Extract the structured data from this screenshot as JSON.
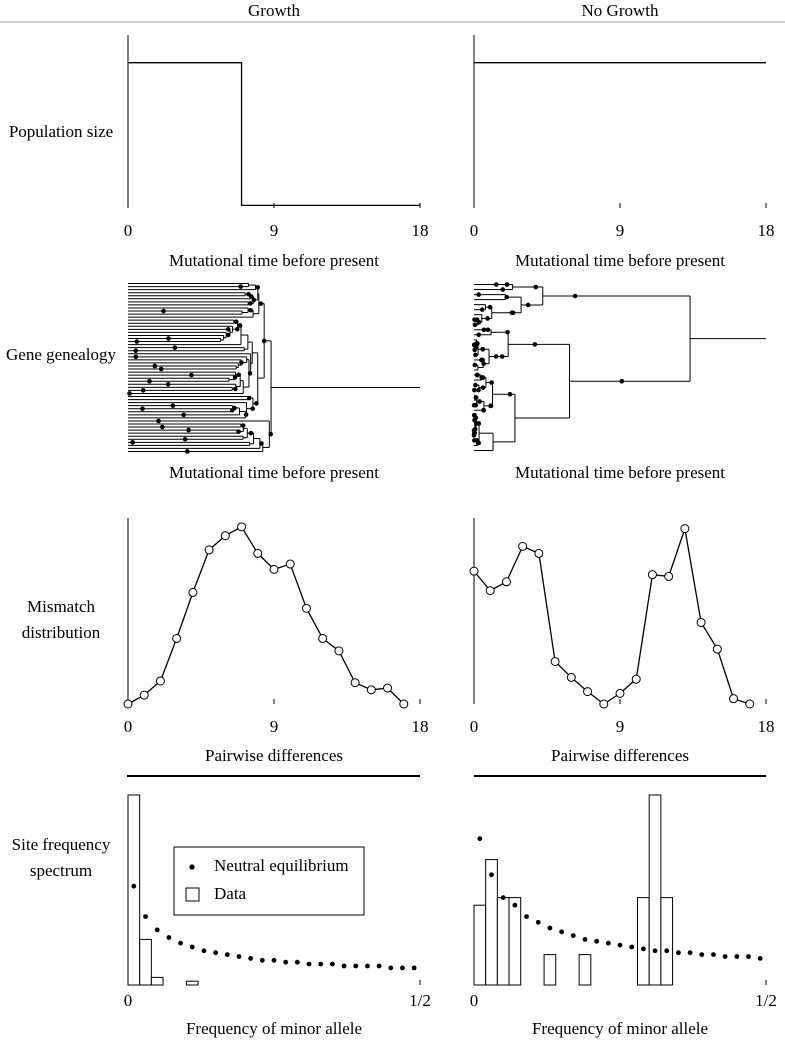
{
  "columns": [
    "Growth",
    "No Growth"
  ],
  "row_labels": [
    "Population size",
    "Gene genealogy",
    "Mismatch distribution",
    "Site frequency spectrum"
  ],
  "chart_data": [
    {
      "type": "line",
      "xlabel": "Mutational time before present",
      "x": [
        0,
        7,
        7,
        18
      ],
      "values": [
        0.84,
        0.84,
        0.015,
        0.015
      ],
      "xlim": [
        0,
        18
      ],
      "ylim": [
        0,
        1
      ],
      "xticks": [
        0,
        9,
        18
      ],
      "color": "#000000"
    },
    {
      "type": "line",
      "xlabel": "Mutational time before present",
      "x": [
        0,
        18
      ],
      "values": [
        0.84,
        0.84
      ],
      "xlim": [
        0,
        18
      ],
      "ylim": [
        0,
        1
      ],
      "xticks": [
        0,
        9,
        18
      ],
      "color": "#000000"
    },
    {
      "type": "genealogy",
      "xlabel": "Mutational time before present",
      "color": "#000000"
    },
    {
      "type": "genealogy",
      "xlabel": "Mutational time before present",
      "color": "#000000"
    },
    {
      "type": "line",
      "markers": true,
      "xlabel": "Pairwise differences",
      "x": [
        0,
        1,
        2,
        3,
        4,
        5,
        6,
        7,
        8,
        9,
        10,
        11,
        12,
        13,
        14,
        15,
        16,
        17
      ],
      "values": [
        0,
        0.05,
        0.13,
        0.37,
        0.63,
        0.87,
        0.95,
        1.0,
        0.85,
        0.76,
        0.79,
        0.54,
        0.37,
        0.3,
        0.12,
        0.08,
        0.09,
        0
      ],
      "xlim": [
        0,
        18
      ],
      "ylim": [
        0,
        1.05
      ],
      "xticks": [
        0,
        9,
        18
      ],
      "color": "#000000"
    },
    {
      "type": "line",
      "markers": true,
      "xlabel": "Pairwise differences",
      "x": [
        0,
        1,
        2,
        3,
        4,
        5,
        6,
        7,
        8,
        9,
        10,
        11,
        12,
        13,
        14,
        15,
        16,
        17
      ],
      "values": [
        0.75,
        0.64,
        0.69,
        0.89,
        0.85,
        0.24,
        0.15,
        0.07,
        0,
        0.06,
        0.14,
        0.73,
        0.72,
        0.99,
        0.46,
        0.31,
        0.03,
        0
      ],
      "xlim": [
        0,
        18
      ],
      "ylim": [
        0,
        1.05
      ],
      "xticks": [
        0,
        9,
        18
      ],
      "color": "#000000"
    },
    {
      "type": "histogram",
      "xlabel": "Frequency of minor allele",
      "legend": "upper center",
      "xlim": [
        0,
        0.5
      ],
      "ylim": [
        0,
        1
      ],
      "xticks": [
        0,
        {
          "value": 0.5,
          "label": "1/2"
        }
      ],
      "bins": [
        0,
        0.02,
        0.04,
        0.06,
        0.08,
        0.1,
        0.12,
        0.14,
        0.16,
        0.18,
        0.2,
        0.22,
        0.24,
        0.26,
        0.28,
        0.3,
        0.32,
        0.34,
        0.36,
        0.38,
        0.4,
        0.42,
        0.44,
        0.46,
        0.48,
        0.5
      ],
      "series": [
        {
          "name": "Neutral equilibrium",
          "marker": "dot",
          "color": "#000000",
          "x": [
            0.01,
            0.03,
            0.05,
            0.07,
            0.09,
            0.11,
            0.13,
            0.15,
            0.17,
            0.19,
            0.21,
            0.23,
            0.25,
            0.27,
            0.29,
            0.31,
            0.33,
            0.35,
            0.37,
            0.39,
            0.41,
            0.43,
            0.45,
            0.47,
            0.49
          ],
          "values": [
            0.52,
            0.36,
            0.29,
            0.25,
            0.22,
            0.2,
            0.18,
            0.17,
            0.16,
            0.15,
            0.14,
            0.13,
            0.13,
            0.12,
            0.12,
            0.11,
            0.11,
            0.11,
            0.1,
            0.1,
            0.1,
            0.1,
            0.09,
            0.09,
            0.09
          ]
        },
        {
          "name": "Data",
          "marker": "bar",
          "color": "#000000",
          "values": [
            1.0,
            0.24,
            0.04,
            0,
            0,
            0.02,
            0,
            0,
            0,
            0,
            0,
            0,
            0,
            0,
            0,
            0,
            0,
            0,
            0,
            0,
            0,
            0,
            0,
            0,
            0
          ]
        }
      ]
    },
    {
      "type": "histogram",
      "xlabel": "Frequency of minor allele",
      "xlim": [
        0,
        0.5
      ],
      "ylim": [
        0,
        1
      ],
      "xticks": [
        0,
        {
          "value": 0.5,
          "label": "1/2"
        }
      ],
      "bins": [
        0,
        0.02,
        0.04,
        0.06,
        0.08,
        0.1,
        0.12,
        0.14,
        0.16,
        0.18,
        0.2,
        0.22,
        0.24,
        0.26,
        0.28,
        0.3,
        0.32,
        0.34,
        0.36,
        0.38,
        0.4,
        0.42,
        0.44,
        0.46,
        0.48,
        0.5
      ],
      "series": [
        {
          "marker": "dot",
          "color": "#000000",
          "x": [
            0.01,
            0.03,
            0.05,
            0.07,
            0.09,
            0.11,
            0.13,
            0.15,
            0.17,
            0.19,
            0.21,
            0.23,
            0.25,
            0.27,
            0.29,
            0.31,
            0.33,
            0.35,
            0.37,
            0.39,
            0.41,
            0.43,
            0.45,
            0.47,
            0.49
          ],
          "values": [
            0.77,
            0.58,
            0.46,
            0.42,
            0.36,
            0.33,
            0.3,
            0.28,
            0.26,
            0.24,
            0.23,
            0.22,
            0.21,
            0.2,
            0.19,
            0.18,
            0.18,
            0.17,
            0.17,
            0.16,
            0.16,
            0.15,
            0.15,
            0.15,
            0.14
          ]
        },
        {
          "marker": "bar",
          "color": "#000000",
          "values": [
            0.42,
            0.66,
            0.46,
            0.46,
            0,
            0,
            0.16,
            0,
            0,
            0.16,
            0,
            0,
            0,
            0,
            0.46,
            1.0,
            0.46,
            0,
            0,
            0,
            0,
            0,
            0,
            0,
            0
          ]
        }
      ]
    }
  ]
}
